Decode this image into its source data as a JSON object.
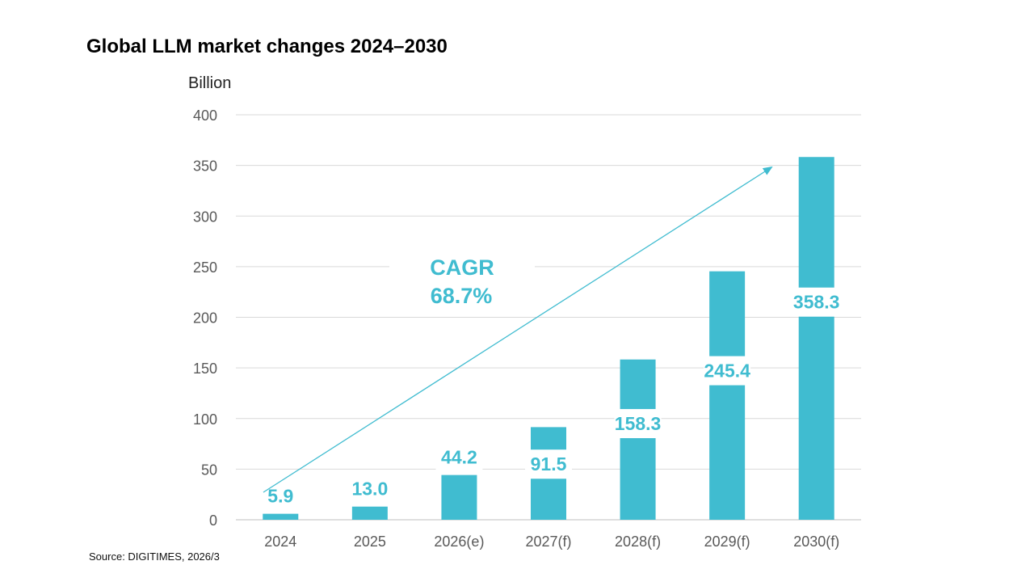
{
  "chart_data": {
    "type": "bar",
    "title": "Global LLM market changes 2024–2030",
    "ylabel": "Billion",
    "xlabel": "",
    "categories": [
      "2024",
      "2025",
      "2026(e)",
      "2027(f)",
      "2028(f)",
      "2029(f)",
      "2030(f)"
    ],
    "values": [
      5.9,
      13.0,
      44.2,
      91.5,
      158.3,
      245.4,
      358.3
    ],
    "data_labels": [
      "5.9",
      "13.0",
      "44.2",
      "91.5",
      "158.3",
      "245.4",
      "358.3"
    ],
    "yticks": [
      "0",
      "50",
      "100",
      "150",
      "200",
      "250",
      "300",
      "350",
      "400"
    ],
    "ylim": [
      0,
      400
    ],
    "grid": true,
    "legend": "none",
    "bar_color": "#40BCD0",
    "annotation": {
      "line1": "CAGR",
      "line2": "68.7%",
      "color": "#40BCD0"
    },
    "source": "Source: DIGITIMES, 2026/3"
  }
}
